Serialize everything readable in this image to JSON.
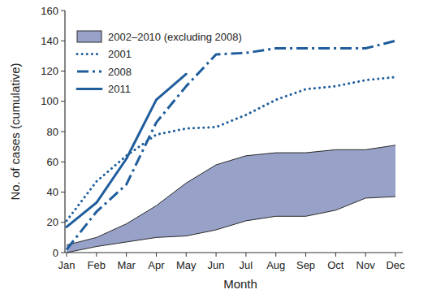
{
  "chart_data": {
    "type": "line",
    "x_label": "Month",
    "y_label": "No. of cases (cumulative)",
    "categories": [
      "Jan",
      "Feb",
      "Mar",
      "Apr",
      "May",
      "Jun",
      "Jul",
      "Aug",
      "Sep",
      "Oct",
      "Nov",
      "Dec"
    ],
    "ylim": [
      0,
      160
    ],
    "yticks": [
      0,
      20,
      40,
      60,
      80,
      100,
      120,
      140,
      160
    ],
    "legend": "top-left",
    "series": [
      {
        "name": "2002–2010 (excluding 2008)",
        "type": "band",
        "color": "#98a2c9",
        "values": [
          5,
          10,
          19,
          31,
          46,
          58,
          64,
          66,
          66,
          68,
          68,
          71
        ],
        "lower": [
          0,
          4,
          7,
          10,
          11,
          15,
          21,
          24,
          24,
          28,
          36,
          37
        ]
      },
      {
        "name": "2001",
        "type": "line",
        "color": "#1f5d9c",
        "line_style": "dotted",
        "values": [
          21,
          47,
          64,
          78,
          82,
          83,
          91,
          101,
          108,
          110,
          114,
          116
        ]
      },
      {
        "name": "2008",
        "type": "line",
        "color": "#1f5d9c",
        "line_style": "dash-dot",
        "values": [
          2,
          27,
          45,
          86,
          110,
          131,
          132,
          135,
          135,
          135,
          135,
          140
        ]
      },
      {
        "name": "2011",
        "type": "line",
        "color": "#1f5d9c",
        "line_style": "solid",
        "values": [
          17,
          33,
          62,
          101,
          118,
          null,
          null,
          null,
          null,
          null,
          null,
          null
        ]
      }
    ]
  }
}
